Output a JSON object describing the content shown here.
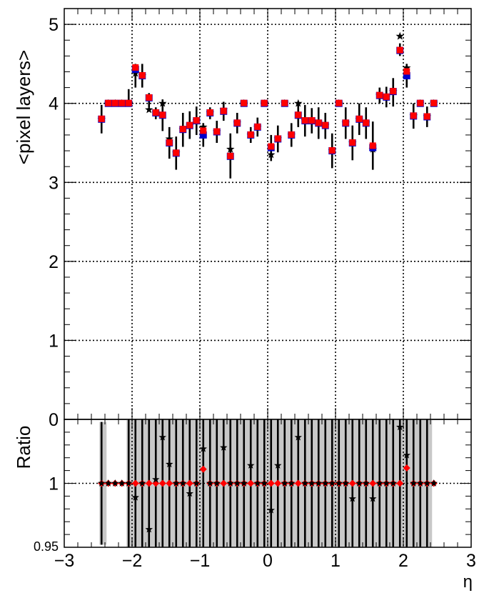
{
  "chart_data": [
    {
      "type": "scatter",
      "panel": "main",
      "ylabel": "<pixel layers>",
      "xlim": [
        -3,
        3
      ],
      "ylim": [
        0,
        5.2
      ],
      "x_ticks": [
        "−3",
        "−2",
        "−1",
        "0",
        "1",
        "2",
        "3"
      ],
      "y_ticks": [
        "0",
        "1",
        "2",
        "3",
        "4",
        "5"
      ],
      "grid": true,
      "colors": {
        "red": "#ff0000",
        "blue": "#0000cc",
        "black": "#000000"
      },
      "x": [
        -2.45,
        -2.35,
        -2.25,
        -2.15,
        -2.05,
        -1.95,
        -1.85,
        -1.75,
        -1.65,
        -1.55,
        -1.45,
        -1.35,
        -1.25,
        -1.15,
        -1.05,
        -0.95,
        -0.85,
        -0.75,
        -0.65,
        -0.55,
        -0.45,
        -0.35,
        -0.25,
        -0.15,
        -0.05,
        0.05,
        0.15,
        0.25,
        0.35,
        0.45,
        0.55,
        0.65,
        0.75,
        0.85,
        0.95,
        1.05,
        1.15,
        1.25,
        1.35,
        1.45,
        1.55,
        1.65,
        1.75,
        1.85,
        1.95,
        2.05,
        2.15,
        2.25,
        2.35,
        2.45
      ],
      "series": [
        {
          "marker": "square",
          "color": "red",
          "values": [
            3.8,
            4.0,
            4.0,
            4.0,
            4.0,
            4.45,
            4.35,
            4.07,
            3.88,
            3.85,
            3.5,
            3.37,
            3.67,
            3.72,
            3.78,
            3.65,
            3.88,
            3.64,
            3.9,
            3.33,
            3.75,
            4.0,
            3.6,
            3.7,
            4.0,
            3.45,
            3.55,
            4.0,
            3.6,
            3.85,
            3.78,
            3.78,
            3.75,
            3.72,
            3.4,
            4.0,
            3.75,
            3.5,
            3.8,
            3.75,
            3.46,
            4.1,
            4.08,
            4.15,
            4.67,
            4.4,
            3.84,
            4.0,
            3.83,
            4.0
          ]
        },
        {
          "marker": "square",
          "color": "blue",
          "values": [
            3.8,
            4.0,
            4.0,
            4.0,
            4.0,
            4.43,
            4.35,
            4.07,
            3.88,
            3.85,
            3.5,
            3.37,
            3.67,
            3.72,
            3.78,
            3.6,
            3.88,
            3.64,
            3.9,
            3.33,
            3.75,
            4.0,
            3.6,
            3.7,
            4.0,
            3.44,
            3.55,
            4.0,
            3.6,
            3.85,
            3.78,
            3.78,
            3.75,
            3.72,
            3.4,
            4.0,
            3.75,
            3.5,
            3.8,
            3.75,
            3.44,
            4.1,
            4.08,
            4.15,
            4.67,
            4.35,
            3.84,
            4.0,
            3.83,
            4.0
          ],
          "y_low": [
            3.62,
            4.0,
            4.0,
            4.0,
            4.0,
            4.2,
            4.2,
            3.95,
            3.8,
            3.65,
            3.3,
            3.16,
            3.45,
            3.55,
            3.6,
            3.45,
            3.8,
            3.5,
            3.78,
            3.05,
            3.62,
            4.0,
            3.5,
            3.58,
            4.0,
            3.27,
            3.38,
            4.0,
            3.45,
            3.7,
            3.58,
            3.62,
            3.55,
            3.55,
            3.18,
            4.0,
            3.55,
            3.28,
            3.6,
            3.55,
            3.16,
            4.0,
            3.95,
            3.96,
            4.6,
            4.2,
            3.68,
            4.0,
            3.7,
            4.0
          ],
          "y_high": [
            3.98,
            4.0,
            4.0,
            4.0,
            4.18,
            4.5,
            4.5,
            4.13,
            3.95,
            4.05,
            3.7,
            3.58,
            3.88,
            3.9,
            3.96,
            3.75,
            3.95,
            3.78,
            4.02,
            3.62,
            3.88,
            4.0,
            3.7,
            3.82,
            4.0,
            3.6,
            3.72,
            4.0,
            3.75,
            4.0,
            3.98,
            3.94,
            3.95,
            3.88,
            3.62,
            4.0,
            3.95,
            3.72,
            4.0,
            3.95,
            3.77,
            4.2,
            4.21,
            4.32,
            4.76,
            4.5,
            4.0,
            4.0,
            3.96,
            4.0
          ]
        },
        {
          "marker": "star",
          "color": "black",
          "values": [
            3.8,
            4.0,
            4.0,
            4.0,
            4.0,
            4.38,
            4.35,
            3.92,
            3.88,
            4.0,
            3.55,
            3.37,
            3.67,
            3.72,
            3.78,
            3.7,
            3.88,
            3.64,
            3.92,
            3.42,
            3.75,
            4.0,
            3.6,
            3.7,
            4.0,
            3.35,
            3.55,
            4.0,
            3.6,
            4.0,
            3.78,
            3.78,
            3.75,
            3.72,
            3.4,
            4.0,
            3.75,
            3.5,
            3.8,
            3.75,
            3.42,
            4.1,
            4.08,
            4.15,
            4.85,
            4.45,
            3.84,
            4.0,
            3.83,
            4.0
          ]
        }
      ]
    },
    {
      "type": "scatter",
      "panel": "ratio",
      "ylabel": "Ratio",
      "xlabel": "η",
      "xlim": [
        -3,
        3
      ],
      "ylim": [
        0.95,
        1.05
      ],
      "x_ticks": [
        "−3",
        "−2",
        "−1",
        "0",
        "1",
        "2",
        "3"
      ],
      "y_ticks": [
        "0.95",
        "1"
      ],
      "grid": true,
      "x": [
        -2.45,
        -2.35,
        -2.25,
        -2.15,
        -2.05,
        -1.95,
        -1.85,
        -1.75,
        -1.65,
        -1.55,
        -1.45,
        -1.35,
        -1.25,
        -1.15,
        -1.05,
        -0.95,
        -0.85,
        -0.75,
        -0.65,
        -0.55,
        -0.45,
        -0.35,
        -0.25,
        -0.15,
        -0.05,
        0.05,
        0.15,
        0.25,
        0.35,
        0.45,
        0.55,
        0.65,
        0.75,
        0.85,
        0.95,
        1.05,
        1.15,
        1.25,
        1.35,
        1.45,
        1.55,
        1.65,
        1.75,
        1.85,
        1.95,
        2.05,
        2.15,
        2.25,
        2.35,
        2.45
      ],
      "band_halfwidth": [
        0.048,
        0.0,
        0.0,
        0.0,
        0.08,
        0.06,
        0.06,
        0.06,
        0.06,
        0.06,
        0.06,
        0.06,
        0.06,
        0.06,
        0.06,
        0.06,
        0.06,
        0.06,
        0.06,
        0.06,
        0.06,
        0.06,
        0.06,
        0.06,
        0.06,
        0.06,
        0.06,
        0.06,
        0.06,
        0.06,
        0.06,
        0.06,
        0.06,
        0.06,
        0.06,
        0.06,
        0.06,
        0.06,
        0.06,
        0.06,
        0.06,
        0.06,
        0.06,
        0.06,
        0.06,
        0.06,
        0.06,
        0.06,
        0.06,
        0.0
      ],
      "series": [
        {
          "marker": "diamond",
          "color": "red",
          "values": [
            1.0,
            1.0,
            1.0,
            1.0,
            1.0,
            1.0,
            1.0,
            1.0,
            1.0,
            1.0,
            1.0,
            1.0,
            1.0,
            1.0,
            1.0,
            1.011,
            1.0,
            1.0,
            1.0,
            1.0,
            1.0,
            1.0,
            1.0,
            1.0,
            1.0,
            1.0,
            1.0,
            1.0,
            1.0,
            1.0,
            1.0,
            1.0,
            1.0,
            1.0,
            1.0,
            1.0,
            1.0,
            1.0,
            1.0,
            1.0,
            1.0,
            1.0,
            1.0,
            1.0,
            1.0,
            1.012,
            1.0,
            1.0,
            1.0,
            1.0
          ]
        },
        {
          "marker": "star",
          "color": "black",
          "values": [
            1.0,
            1.0,
            1.0,
            1.0,
            1.0,
            0.989,
            1.0,
            0.964,
            1.003,
            1.036,
            1.015,
            1.0,
            1.0,
            0.992,
            1.0,
            1.027,
            1.0,
            1.0,
            1.028,
            1.0,
            1.0,
            1.0,
            1.014,
            1.0,
            1.0,
            0.979,
            1.014,
            1.0,
            1.0,
            1.036,
            1.0,
            1.0,
            1.0,
            1.0,
            1.0,
            1.0,
            1.0,
            0.988,
            1.0,
            1.0,
            0.988,
            1.0,
            1.0,
            1.0,
            1.044,
            1.022,
            1.0,
            1.0,
            1.0,
            1.0
          ]
        }
      ]
    }
  ]
}
